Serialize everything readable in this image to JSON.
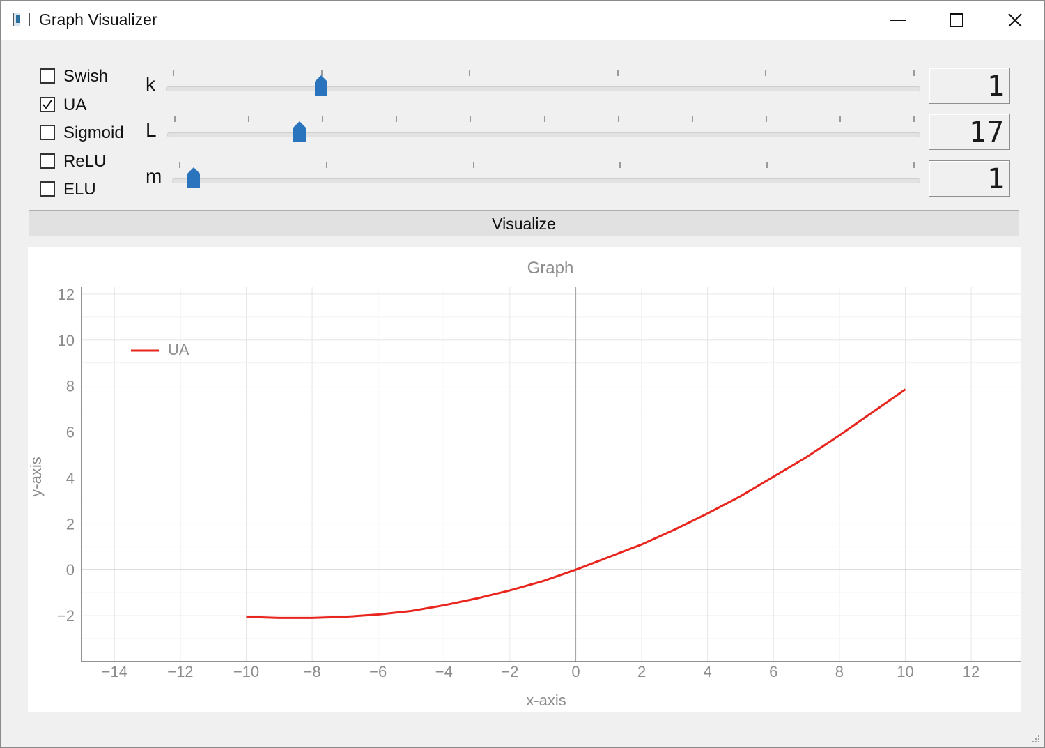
{
  "window": {
    "title": "Graph Visualizer",
    "icon": "app-window-icon",
    "controls": [
      "minimize-icon",
      "maximize-icon",
      "close-icon"
    ]
  },
  "functions": [
    {
      "label": "Swish",
      "checked": false
    },
    {
      "label": "UA",
      "checked": true
    },
    {
      "label": "Sigmoid",
      "checked": false
    },
    {
      "label": "ReLU",
      "checked": false
    },
    {
      "label": "ELU",
      "checked": false
    }
  ],
  "sliders": [
    {
      "label": "k",
      "display": "1",
      "position": 0.2
    },
    {
      "label": "L",
      "display": "17",
      "position": 0.17
    },
    {
      "label": "m",
      "display": "1",
      "position": 0.02
    }
  ],
  "visualize_button": {
    "label": "Visualize"
  },
  "chart_data": {
    "type": "line",
    "title": "Graph",
    "xlabel": "x-axis",
    "ylabel": "y-axis",
    "xlim": [
      -15,
      13.5
    ],
    "ylim": [
      -4,
      12.3
    ],
    "xticks": [
      -14,
      -12,
      -10,
      -8,
      -6,
      -4,
      -2,
      0,
      2,
      4,
      6,
      8,
      10,
      12
    ],
    "yticks": [
      -2,
      0,
      2,
      4,
      6,
      8,
      10,
      12
    ],
    "grid": true,
    "legend_position": "top-left",
    "series": [
      {
        "name": "UA",
        "color": "#e8261e",
        "x": [
          -10,
          -9,
          -8,
          -7,
          -6,
          -5,
          -4,
          -3,
          -2,
          -1,
          0,
          1,
          2,
          3,
          4,
          5,
          6,
          7,
          8,
          9,
          10
        ],
        "y": [
          -2.05,
          -2.1,
          -2.1,
          -2.05,
          -1.95,
          -1.8,
          -1.55,
          -1.25,
          -0.9,
          -0.5,
          0,
          0.55,
          1.1,
          1.75,
          2.45,
          3.2,
          4.05,
          4.9,
          5.85,
          6.85,
          7.85
        ]
      }
    ]
  }
}
